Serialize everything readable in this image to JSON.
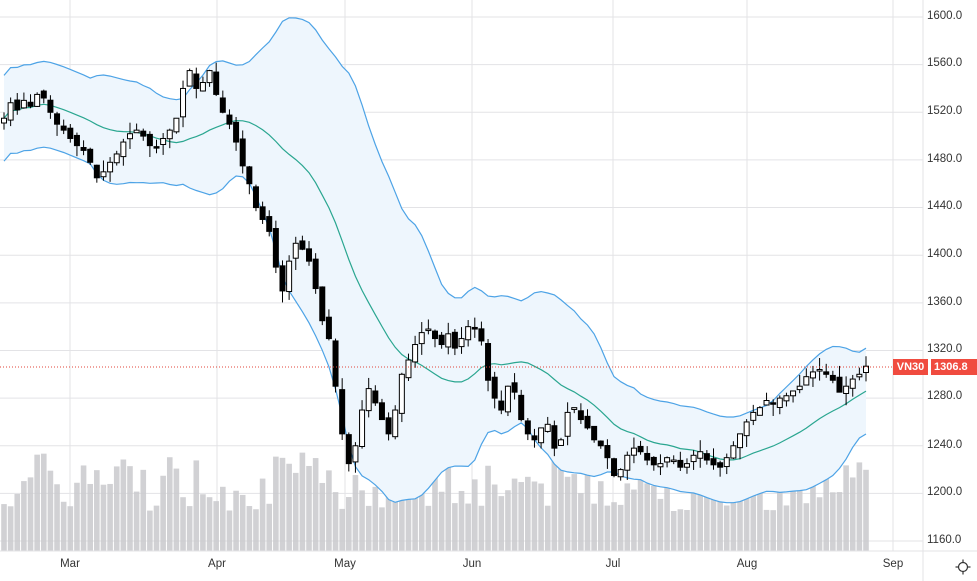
{
  "symbol_badge": {
    "label": "VN30",
    "last_price": "1306.8",
    "color": "#f04b3f"
  },
  "axis": {
    "y_ticks": [
      "1600.0",
      "1560.0",
      "1520.0",
      "1480.0",
      "1440.0",
      "1400.0",
      "1360.0",
      "1320.0",
      "1280.0",
      "1240.0",
      "1200.0",
      "1160.0"
    ],
    "x_ticks": [
      "Mar",
      "Apr",
      "May",
      "Jun",
      "Jul",
      "Aug",
      "Sep"
    ]
  },
  "settings_icon": "gear-icon",
  "colors": {
    "grid": "#e3e3e6",
    "bollinger_outer": "#4da3e6",
    "bollinger_mid": "#2aa690",
    "bollinger_fill": "#eef6fd",
    "candle": "#000000",
    "volume": "#c9c9cd",
    "last_price_line": "#e0463a"
  },
  "chart_data": {
    "type": "candlestick",
    "title": "VN30",
    "xlabel": "",
    "ylabel": "",
    "ylim": [
      1160,
      1600
    ],
    "y_ticks": [
      1600,
      1560,
      1520,
      1480,
      1440,
      1400,
      1360,
      1320,
      1280,
      1240,
      1200,
      1160
    ],
    "x_ticks": [
      "Mar",
      "Apr",
      "May",
      "Jun",
      "Jul",
      "Aug",
      "Sep"
    ],
    "grid": true,
    "last_price": 1306.8,
    "indicators": [
      "Bollinger Bands (upper, middle, lower)",
      "Volume"
    ],
    "approx_closes": [
      1515,
      1528,
      1522,
      1530,
      1525,
      1535,
      1532,
      1520,
      1510,
      1505,
      1498,
      1492,
      1488,
      1478,
      1465,
      1470,
      1478,
      1485,
      1495,
      1502,
      1505,
      1500,
      1492,
      1490,
      1498,
      1505,
      1515,
      1540,
      1555,
      1540,
      1545,
      1555,
      1535,
      1520,
      1510,
      1495,
      1475,
      1460,
      1440,
      1430,
      1420,
      1390,
      1370,
      1395,
      1410,
      1405,
      1395,
      1372,
      1345,
      1330,
      1290,
      1250,
      1225,
      1240,
      1270,
      1288,
      1276,
      1262,
      1250,
      1270,
      1300,
      1312,
      1325,
      1335,
      1338,
      1330,
      1325,
      1334,
      1322,
      1330,
      1340,
      1338,
      1328,
      1295,
      1280,
      1270,
      1290,
      1285,
      1262,
      1250,
      1245,
      1255,
      1258,
      1238,
      1245,
      1268,
      1272,
      1262,
      1255,
      1245,
      1240,
      1230,
      1215,
      1220,
      1232,
      1238,
      1235,
      1228,
      1224,
      1225,
      1230,
      1228,
      1222,
      1225,
      1232,
      1235,
      1228,
      1224,
      1222,
      1230,
      1240,
      1250,
      1260,
      1268,
      1272,
      1278,
      1275,
      1280,
      1282,
      1286,
      1290,
      1298,
      1302,
      1304,
      1300,
      1295,
      1285,
      1290,
      1296,
      1300,
      1306.8
    ],
    "bollinger_upper_approx": {
      "start": 1565,
      "peak": {
        "month": "late Apr",
        "value": 1596
      },
      "trough": {
        "month": "Jul",
        "value": 1275
      },
      "end": 1318
    },
    "bollinger_lower_approx": {
      "start": 1465,
      "trough": {
        "month": "late May",
        "value": 1198
      },
      "end": 1255
    },
    "volume_note": "relative volume bars in lower pane"
  }
}
